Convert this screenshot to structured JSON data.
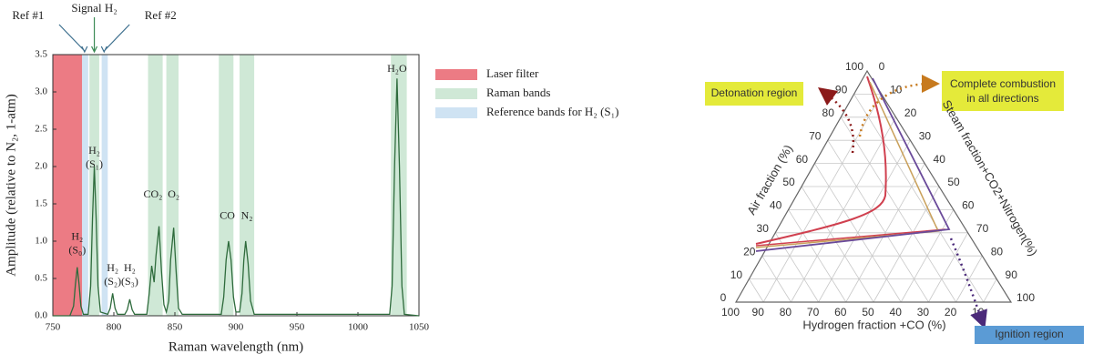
{
  "chart_data": {
    "type": "line",
    "xlabel": "Raman wavelength (nm)",
    "ylabel": "Amplitude (relative to N₂, 1-atm)",
    "xlim": [
      750,
      1050
    ],
    "xticks": [
      750,
      800,
      850,
      900,
      950,
      1000,
      1050
    ],
    "ylim": [
      0,
      3.5
    ],
    "yticks": [
      {
        "value": 0,
        "label": "0.0"
      },
      0.5,
      {
        "value": 1,
        "label": "1.0"
      },
      1.5,
      {
        "value": 2,
        "label": "2.0"
      },
      2.5,
      {
        "value": 3,
        "label": "3.0"
      },
      3.5
    ],
    "color": "#2e6b3c",
    "x": [
      750,
      764,
      767,
      768.5,
      770,
      771.5,
      773,
      775,
      779,
      781,
      782.5,
      784,
      785.5,
      787,
      789,
      795,
      797,
      799,
      801,
      803,
      809,
      811,
      813,
      815,
      817,
      827,
      829,
      831,
      833,
      834.5,
      837,
      839,
      841,
      843,
      845,
      846.5,
      849,
      851,
      853,
      856,
      888,
      890,
      892,
      894,
      896,
      898,
      900,
      903,
      905,
      906.5,
      908,
      910,
      912,
      915,
      1026,
      1028,
      1030,
      1032,
      1034,
      1036,
      1038,
      1050
    ],
    "values": [
      0,
      0,
      0.13,
      0.42,
      0.65,
      0.42,
      0.13,
      0.02,
      0.02,
      0.4,
      1.3,
      2.0,
      1.3,
      0.4,
      0.05,
      0.02,
      0.1,
      0.3,
      0.1,
      0.02,
      0.02,
      0.08,
      0.22,
      0.08,
      0.02,
      0.02,
      0.3,
      0.67,
      0.45,
      0.8,
      1.2,
      0.6,
      0.15,
      0.05,
      0.2,
      0.75,
      1.18,
      0.6,
      0.1,
      0.02,
      0.02,
      0.25,
      0.75,
      1.0,
      0.75,
      0.25,
      0.05,
      0.05,
      0.3,
      0.75,
      1.0,
      0.7,
      0.2,
      0.02,
      0.02,
      0.4,
      2.0,
      3.18,
      2.0,
      0.4,
      0.02,
      0
    ],
    "bands": [
      {
        "name": "Laser filter",
        "color": "#ec7b84",
        "ranges": [
          [
            750,
            774
          ]
        ]
      },
      {
        "name": "Raman bands",
        "color": "#cfe8d6",
        "ranges": [
          [
            780,
            788
          ],
          [
            828,
            840
          ],
          [
            843,
            853
          ],
          [
            886,
            898
          ],
          [
            903,
            915
          ],
          [
            1027,
            1040
          ]
        ]
      },
      {
        "name": "Reference bands for H₂ (S₁)",
        "color": "#cfe3f3",
        "ranges": [
          [
            774,
            779
          ],
          [
            790,
            795
          ]
        ]
      }
    ],
    "annotations": [
      {
        "text": "Ref #1",
        "x": 776,
        "color": "#3d6f8e"
      },
      {
        "text": "Signal H₂",
        "x": 784,
        "color": "#3b8a55"
      },
      {
        "text": "Ref #2",
        "x": 792,
        "color": "#3d6f8e"
      }
    ],
    "peak_labels": [
      {
        "lines": [
          "H₂",
          "(S₀)"
        ],
        "x": 770,
        "y": 0.87
      },
      {
        "lines": [
          "H₂",
          "(S₁)"
        ],
        "x": 784,
        "y": 2.02
      },
      {
        "lines": [
          "H₂",
          "(S₂)"
        ],
        "x": 799,
        "y": 0.45
      },
      {
        "lines": [
          "H₂",
          "(S₃)"
        ],
        "x": 813,
        "y": 0.45
      },
      {
        "lines": [
          "CO₂"
        ],
        "x": 832,
        "y": 1.62
      },
      {
        "lines": [
          "O₂"
        ],
        "x": 849,
        "y": 1.62
      },
      {
        "lines": [
          "CO"
        ],
        "x": 893,
        "y": 1.33
      },
      {
        "lines": [
          "N₂"
        ],
        "x": 909,
        "y": 1.33
      },
      {
        "lines": [
          "H₂O"
        ],
        "x": 1032,
        "y": 3.3
      }
    ]
  },
  "ternary": {
    "detonation": "Detonation region",
    "combustion": [
      "Complete combustion",
      "in all directions"
    ],
    "ignition": "Ignition region",
    "left_axis": "Air fraction (%)",
    "right_axis": "Steam fraction+CO2+Nitrogen(%)",
    "bottom_axis": "Hydrogen fraction +CO (%)",
    "left_ticks": [
      "0",
      "10",
      "20",
      "30",
      "40",
      "50",
      "60",
      "70",
      "80",
      "90",
      "100"
    ],
    "right_ticks": [
      "0",
      "10",
      "20",
      "30",
      "40",
      "50",
      "60",
      "70",
      "80",
      "90",
      "100"
    ],
    "bottom_ticks": [
      "100",
      "90",
      "80",
      "70",
      "60",
      "50",
      "40",
      "30",
      "20",
      "10"
    ]
  }
}
